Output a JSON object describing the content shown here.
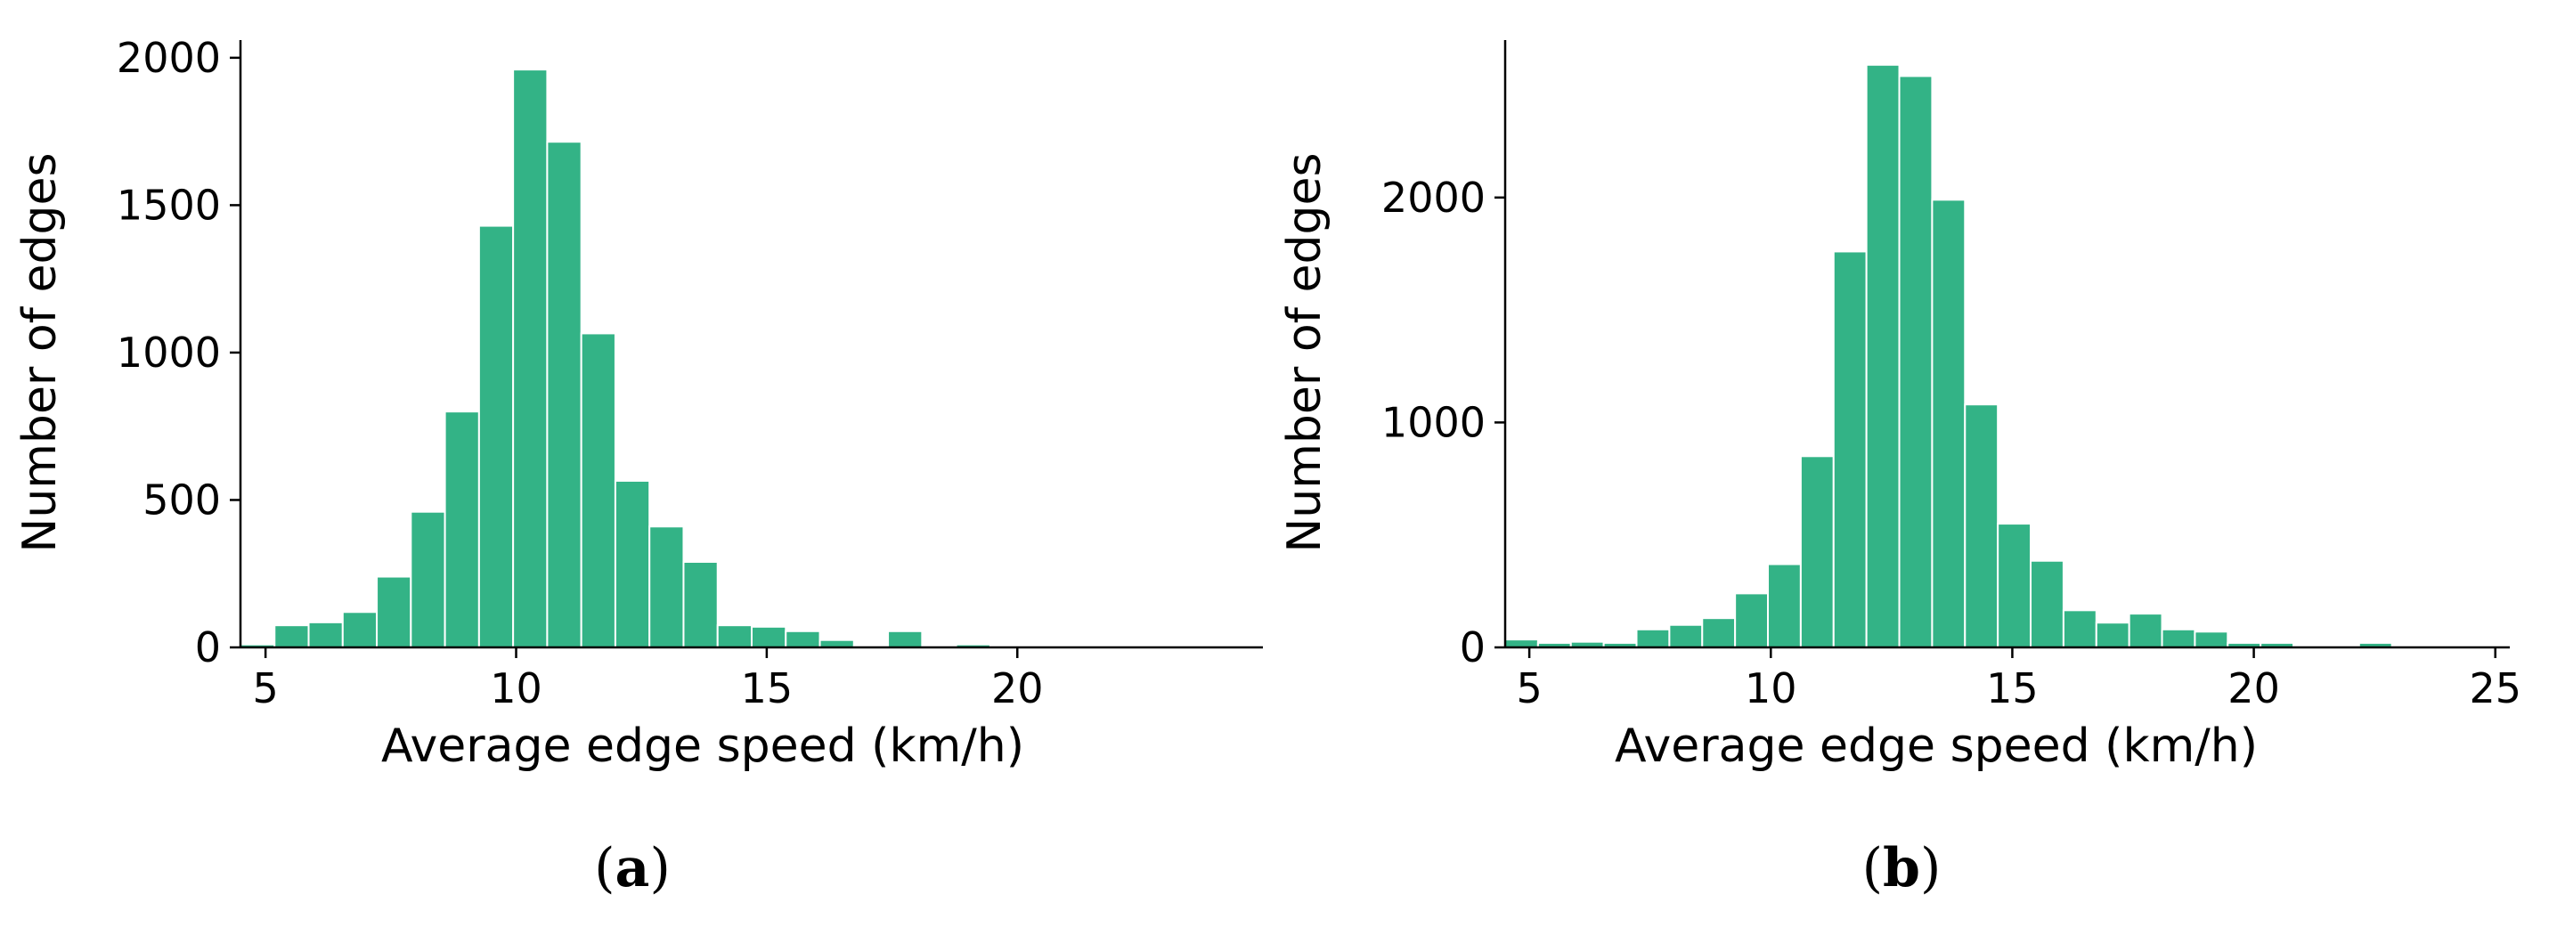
{
  "chart_data": [
    {
      "type": "bar",
      "panel": "(a)",
      "xlabel": "Average edge speed (km/h)",
      "ylabel": "Number of edges",
      "xlim": [
        4.5,
        24.9
      ],
      "ylim": [
        0,
        2060
      ],
      "xticks": [
        5,
        10,
        15,
        20
      ],
      "yticks": [
        0,
        500,
        1000,
        1500,
        2000
      ],
      "bin_width": 0.68,
      "bin_start": 4.5,
      "values": [
        10,
        75,
        85,
        120,
        240,
        460,
        800,
        1430,
        1960,
        1715,
        1065,
        565,
        410,
        290,
        75,
        70,
        55,
        25,
        5,
        55,
        0,
        10,
        0,
        0,
        0,
        0,
        0,
        0,
        0,
        0
      ],
      "color": "#33b386",
      "grid": false
    },
    {
      "type": "bar",
      "panel": "(b)",
      "xlabel": "Average edge speed (km/h)",
      "ylabel": "Number of edges",
      "xlim": [
        4.5,
        25.3
      ],
      "ylim": [
        0,
        2700
      ],
      "xticks": [
        5,
        10,
        15,
        20,
        25
      ],
      "yticks": [
        0,
        1000,
        2000
      ],
      "bin_width": 0.68,
      "bin_start": 4.5,
      "values": [
        35,
        20,
        25,
        20,
        80,
        100,
        130,
        240,
        370,
        850,
        1760,
        2590,
        2540,
        1990,
        1080,
        550,
        385,
        165,
        110,
        150,
        80,
        70,
        20,
        20,
        0,
        0,
        20,
        0,
        0,
        0
      ],
      "color": "#33b386",
      "grid": false
    }
  ]
}
